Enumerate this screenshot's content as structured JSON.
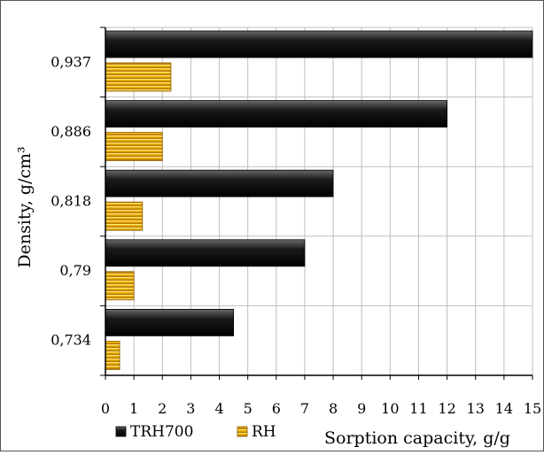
{
  "chart_data": {
    "type": "bar",
    "orientation": "horizontal",
    "categories": [
      "0,937",
      "0,886",
      "0,818",
      "0,79",
      "0,734"
    ],
    "series": [
      {
        "name": "TRH700",
        "values": [
          15,
          12,
          8,
          7,
          4.5
        ]
      },
      {
        "name": "RH",
        "values": [
          2.3,
          2.0,
          1.3,
          1.0,
          0.5
        ]
      }
    ],
    "xlabel": "Sorption capacity, g/g",
    "ylabel": "Density, g/cm³",
    "xlim": [
      0,
      15
    ],
    "xticks": [
      "0",
      "1",
      "2",
      "3",
      "4",
      "5",
      "6",
      "7",
      "8",
      "9",
      "10",
      "11",
      "12",
      "13",
      "14",
      "15"
    ],
    "grid": true,
    "legend_position": "bottom-left",
    "colors": {
      "TRH700": "#1a1a1a",
      "RH": "#f0b400",
      "grid": "#bfbfbf",
      "axis": "#000000"
    }
  }
}
